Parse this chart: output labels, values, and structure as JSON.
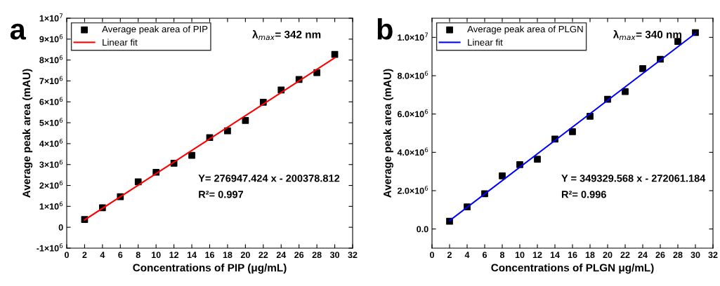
{
  "chart_data": [
    {
      "type": "scatter",
      "xlabel": "Concentrations of PIP (μg/mL)",
      "ylabel": "Average peak area (mAU)",
      "annotations": [
        "a",
        "λ$_{max}$= 342 nm",
        "Y= 276947.424 x - 200378.812",
        "R²= 0.997"
      ],
      "xlim": [
        0,
        32
      ],
      "xticks": [
        0,
        2,
        4,
        6,
        8,
        10,
        12,
        14,
        16,
        18,
        20,
        22,
        24,
        26,
        28,
        30,
        32
      ],
      "ylim": [
        -1000000,
        10000000
      ],
      "yticks": [
        {
          "value": -1000000,
          "label": "-1×10$^{6}$"
        },
        0,
        {
          "value": 1000000,
          "label": "1×10$^{6}$"
        },
        {
          "value": 2000000,
          "label": "2×10$^{6}$"
        },
        {
          "value": 3000000,
          "label": "3×10$^{6}$"
        },
        {
          "value": 4000000,
          "label": "4×10$^{6}$"
        },
        {
          "value": 5000000,
          "label": "5×10$^{6}$"
        },
        {
          "value": 6000000,
          "label": "6×10$^{6}$"
        },
        {
          "value": 7000000,
          "label": "7×10$^{6}$"
        },
        {
          "value": 8000000,
          "label": "8×10$^{6}$"
        },
        {
          "value": 9000000,
          "label": "9×10$^{6}$"
        },
        {
          "value": 10000000,
          "label": "1×10$^{7}$"
        }
      ],
      "legend": "top left",
      "grid": false,
      "series": [
        {
          "name": "Average peak area of PIP",
          "type": "scatter",
          "marker": "square",
          "color": "#000000",
          "x": [
            2,
            4,
            6,
            8,
            10,
            12,
            14,
            16,
            18,
            20,
            22,
            24,
            26,
            28,
            30
          ],
          "values": [
            370000,
            930000,
            1460000,
            2170000,
            2630000,
            3060000,
            3440000,
            4290000,
            4610000,
            5110000,
            5980000,
            6570000,
            7070000,
            7400000,
            8270000
          ]
        },
        {
          "name": "Linear fit",
          "type": "line",
          "marker": "none",
          "color": "#ff0000",
          "x": [
            2,
            30
          ],
          "values": [
            350000,
            8110000
          ]
        }
      ]
    },
    {
      "type": "scatter",
      "xlabel": "Concentrations of PLGN μg/mL)",
      "ylabel": "Average peak area (mAU)",
      "annotations": [
        "b",
        "λ$_{max}$= 340 nm",
        "Y = 349329.568 x - 272061.184",
        "R²= 0.996"
      ],
      "xlim": [
        0,
        32
      ],
      "xticks": [
        0,
        2,
        4,
        6,
        8,
        10,
        12,
        14,
        16,
        18,
        20,
        22,
        24,
        26,
        28,
        30,
        32
      ],
      "ylim": [
        -1000000,
        11000000
      ],
      "yticks": [
        {
          "value": 0,
          "label": "0.0"
        },
        {
          "value": 2000000,
          "label": "2.0×10$^{6}$"
        },
        {
          "value": 4000000,
          "label": "4.0×10$^{6}$"
        },
        {
          "value": 6000000,
          "label": "6.0×10$^{6}$"
        },
        {
          "value": 8000000,
          "label": "8.0×10$^{6}$"
        },
        {
          "value": 10000000,
          "label": "1.0×10$^{7}$"
        }
      ],
      "legend": "top left",
      "grid": false,
      "series": [
        {
          "name": "Average peak area of PLGN",
          "type": "scatter",
          "marker": "square",
          "color": "#000000",
          "x": [
            2,
            4,
            6,
            8,
            10,
            12,
            14,
            16,
            18,
            20,
            22,
            24,
            26,
            28,
            30
          ],
          "values": [
            400000,
            1150000,
            1840000,
            2770000,
            3360000,
            3640000,
            4690000,
            5080000,
            5880000,
            6770000,
            7170000,
            8370000,
            8860000,
            9790000,
            10250000
          ]
        },
        {
          "name": "Linear fit",
          "type": "line",
          "marker": "none",
          "color": "#0000ff",
          "x": [
            2,
            30
          ],
          "values": [
            430000,
            10210000
          ]
        }
      ]
    }
  ]
}
